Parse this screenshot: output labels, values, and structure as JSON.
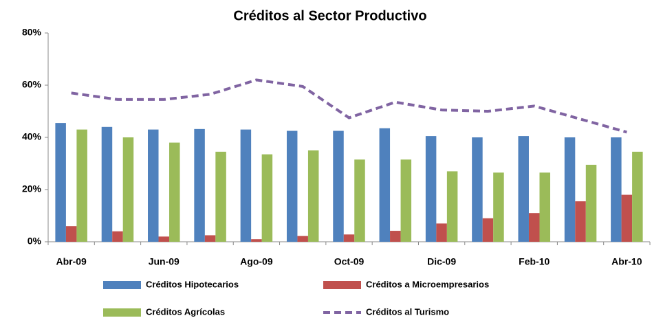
{
  "chart_data": {
    "type": "bar",
    "title": "Créditos al Sector Productivo",
    "categories": [
      "Abr-09",
      null,
      "Jun-09",
      null,
      "Ago-09",
      null,
      "Oct-09",
      null,
      "Dic-09",
      null,
      "Feb-10",
      null,
      "Abr-10"
    ],
    "series": [
      {
        "name": "Créditos Hipotecarios",
        "color": "#4f81bd",
        "values": [
          45.5,
          44,
          43,
          43.2,
          43,
          42.5,
          42.5,
          43.5,
          40.5,
          40,
          40.5,
          40,
          40
        ]
      },
      {
        "name": "Créditos a Microempresarios",
        "color": "#c0504d",
        "values": [
          6,
          4,
          2,
          2.5,
          1,
          2.2,
          2.8,
          4.2,
          7,
          9,
          11,
          15.5,
          18
        ]
      },
      {
        "name": "Créditos Agrícolas",
        "color": "#9bbb59",
        "values": [
          43,
          40,
          38,
          34.5,
          33.5,
          35,
          31.5,
          31.5,
          27,
          26.5,
          26.5,
          29.5,
          34.5
        ]
      },
      {
        "name": "Créditos al Turismo",
        "color": "#8064a2",
        "type": "line",
        "line_style": "dashed",
        "values": [
          57,
          54.5,
          54.5,
          56.5,
          62,
          59.5,
          47.5,
          53.5,
          50.5,
          50,
          52,
          47,
          42
        ]
      }
    ],
    "ylim": [
      0,
      80
    ],
    "yticks": [
      {
        "value": 0,
        "label": "0%"
      },
      {
        "value": 20,
        "label": "20%"
      },
      {
        "value": 40,
        "label": "40%"
      },
      {
        "value": 60,
        "label": "60%"
      },
      {
        "value": 80,
        "label": "80%"
      }
    ]
  }
}
